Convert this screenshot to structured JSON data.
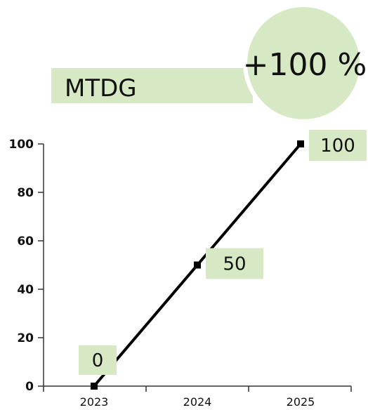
{
  "chart_data": {
    "type": "line",
    "title": "MTDG",
    "headline_change": "+100 %",
    "x": [
      "2023",
      "2024",
      "2025"
    ],
    "series": [
      {
        "values": [
          0,
          50,
          100
        ],
        "data_labels": [
          "0",
          "50",
          "100"
        ]
      }
    ],
    "xlabel": "",
    "ylabel": "",
    "ylim": [
      0,
      100
    ],
    "y_ticks": [
      "0",
      "20",
      "40",
      "60",
      "80",
      "100"
    ],
    "grid": false,
    "colors": {
      "line": "#000000",
      "highlight": "#d7e8c5",
      "axis": "#333333",
      "text": "#111111"
    }
  }
}
